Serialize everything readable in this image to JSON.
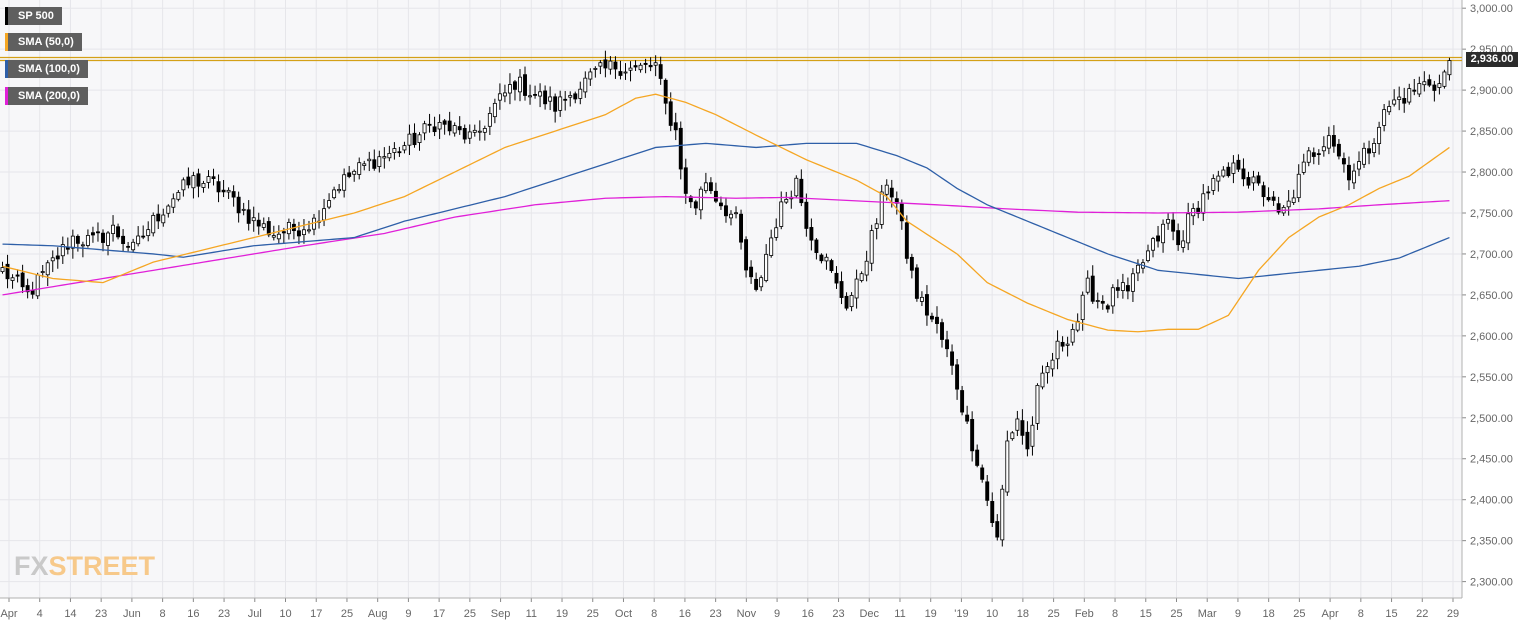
{
  "colors": {
    "background": "#f7f7f9",
    "grid": "#e6e6ea",
    "candle_up_fill": "#ffffff",
    "candle_down_fill": "#000000",
    "candle_outline": "#000000",
    "sma50": "#f5a623",
    "sma100": "#2e5fa8",
    "sma200": "#e020d8",
    "resistance_line": "#d4a017",
    "legend_bg": "#5f5f5f",
    "price_tag_bg": "#2b2b2b"
  },
  "legend": [
    {
      "label": "SP 500",
      "color": "#000000"
    },
    {
      "label": "SMA (50,0)",
      "color": "#f5a623"
    },
    {
      "label": "SMA (100,0)",
      "color": "#2e5fa8"
    },
    {
      "label": "SMA (200,0)",
      "color": "#e020d8"
    }
  ],
  "price_tag": "2,936.00",
  "brand": {
    "part1": "FX",
    "part2": "STREET"
  },
  "chart_data": {
    "type": "candlestick",
    "title": "SP 500",
    "ylim": [
      2280,
      3010
    ],
    "y_ticks": [
      {
        "value": 3000,
        "label": "3,000.00"
      },
      {
        "value": 2950,
        "label": "2,950.00"
      },
      {
        "value": 2900,
        "label": "2,900.00"
      },
      {
        "value": 2850,
        "label": "2,850.00"
      },
      {
        "value": 2800,
        "label": "2,800.00"
      },
      {
        "value": 2750,
        "label": "2,750.00"
      },
      {
        "value": 2700,
        "label": "2,700.00"
      },
      {
        "value": 2650,
        "label": "2,650.00"
      },
      {
        "value": 2600,
        "label": "2,600.00"
      },
      {
        "value": 2550,
        "label": "2,550.00"
      },
      {
        "value": 2500,
        "label": "2,500.00"
      },
      {
        "value": 2450,
        "label": "2,450.00"
      },
      {
        "value": 2400,
        "label": "2,400.00"
      },
      {
        "value": 2350,
        "label": "2,350.00"
      },
      {
        "value": 2300,
        "label": "2,300.00"
      }
    ],
    "x_ticks": [
      "Apr",
      "4",
      "14",
      "23",
      "Jun",
      "8",
      "16",
      "23",
      "Jul",
      "10",
      "17",
      "25",
      "Aug",
      "9",
      "17",
      "25",
      "Sep",
      "11",
      "19",
      "25",
      "Oct",
      "8",
      "16",
      "23",
      "Nov",
      "9",
      "16",
      "23",
      "Dec",
      "11",
      "19",
      "'19",
      "10",
      "18",
      "25",
      "Feb",
      "8",
      "15",
      "25",
      "Mar",
      "9",
      "18",
      "25",
      "Apr",
      "8",
      "15",
      "22",
      "29"
    ],
    "resistance_level": 2938,
    "last_price": 2936,
    "anchors": [
      [
        0,
        2680
      ],
      [
        5,
        2650
      ],
      [
        10,
        2690
      ],
      [
        14,
        2720
      ],
      [
        18,
        2715
      ],
      [
        22,
        2730
      ],
      [
        26,
        2705
      ],
      [
        30,
        2740
      ],
      [
        34,
        2770
      ],
      [
        38,
        2790
      ],
      [
        42,
        2785
      ],
      [
        46,
        2765
      ],
      [
        50,
        2740
      ],
      [
        54,
        2725
      ],
      [
        58,
        2730
      ],
      [
        62,
        2740
      ],
      [
        66,
        2780
      ],
      [
        70,
        2800
      ],
      [
        74,
        2815
      ],
      [
        78,
        2825
      ],
      [
        82,
        2840
      ],
      [
        86,
        2860
      ],
      [
        90,
        2850
      ],
      [
        94,
        2840
      ],
      [
        98,
        2880
      ],
      [
        102,
        2910
      ],
      [
        106,
        2895
      ],
      [
        110,
        2880
      ],
      [
        114,
        2900
      ],
      [
        118,
        2920
      ],
      [
        122,
        2930
      ],
      [
        126,
        2925
      ],
      [
        130,
        2930
      ],
      [
        132,
        2880
      ],
      [
        134,
        2850
      ],
      [
        136,
        2770
      ],
      [
        138,
        2760
      ],
      [
        140,
        2790
      ],
      [
        142,
        2770
      ],
      [
        146,
        2740
      ],
      [
        148,
        2680
      ],
      [
        150,
        2650
      ],
      [
        152,
        2700
      ],
      [
        154,
        2740
      ],
      [
        156,
        2770
      ],
      [
        158,
        2790
      ],
      [
        160,
        2740
      ],
      [
        162,
        2710
      ],
      [
        164,
        2690
      ],
      [
        166,
        2660
      ],
      [
        168,
        2640
      ],
      [
        170,
        2660
      ],
      [
        172,
        2700
      ],
      [
        174,
        2740
      ],
      [
        176,
        2790
      ],
      [
        178,
        2760
      ],
      [
        180,
        2700
      ],
      [
        182,
        2650
      ],
      [
        184,
        2630
      ],
      [
        186,
        2610
      ],
      [
        188,
        2580
      ],
      [
        190,
        2540
      ],
      [
        192,
        2490
      ],
      [
        194,
        2450
      ],
      [
        196,
        2400
      ],
      [
        198,
        2350
      ],
      [
        200,
        2470
      ],
      [
        202,
        2500
      ],
      [
        204,
        2460
      ],
      [
        206,
        2530
      ],
      [
        208,
        2560
      ],
      [
        210,
        2585
      ],
      [
        212,
        2600
      ],
      [
        214,
        2620
      ],
      [
        216,
        2660
      ],
      [
        218,
        2645
      ],
      [
        220,
        2640
      ],
      [
        222,
        2660
      ],
      [
        224,
        2650
      ],
      [
        226,
        2680
      ],
      [
        228,
        2700
      ],
      [
        230,
        2720
      ],
      [
        232,
        2740
      ],
      [
        234,
        2710
      ],
      [
        236,
        2740
      ],
      [
        238,
        2760
      ],
      [
        240,
        2780
      ],
      [
        242,
        2790
      ],
      [
        244,
        2795
      ],
      [
        246,
        2810
      ],
      [
        248,
        2790
      ],
      [
        250,
        2780
      ],
      [
        252,
        2770
      ],
      [
        254,
        2745
      ],
      [
        256,
        2760
      ],
      [
        258,
        2790
      ],
      [
        260,
        2820
      ],
      [
        262,
        2830
      ],
      [
        264,
        2850
      ],
      [
        266,
        2820
      ],
      [
        268,
        2800
      ],
      [
        270,
        2810
      ],
      [
        272,
        2830
      ],
      [
        274,
        2860
      ],
      [
        276,
        2880
      ],
      [
        278,
        2890
      ],
      [
        280,
        2895
      ],
      [
        282,
        2905
      ],
      [
        284,
        2910
      ],
      [
        286,
        2906
      ],
      [
        288,
        2936
      ]
    ],
    "sma50": [
      [
        0,
        2685
      ],
      [
        10,
        2670
      ],
      [
        20,
        2665
      ],
      [
        30,
        2690
      ],
      [
        40,
        2705
      ],
      [
        50,
        2720
      ],
      [
        60,
        2735
      ],
      [
        70,
        2750
      ],
      [
        80,
        2770
      ],
      [
        90,
        2800
      ],
      [
        100,
        2830
      ],
      [
        110,
        2850
      ],
      [
        120,
        2870
      ],
      [
        126,
        2890
      ],
      [
        130,
        2895
      ],
      [
        136,
        2885
      ],
      [
        142,
        2870
      ],
      [
        150,
        2845
      ],
      [
        160,
        2815
      ],
      [
        170,
        2790
      ],
      [
        176,
        2770
      ],
      [
        180,
        2740
      ],
      [
        190,
        2700
      ],
      [
        196,
        2665
      ],
      [
        204,
        2640
      ],
      [
        212,
        2620
      ],
      [
        220,
        2607
      ],
      [
        226,
        2605
      ],
      [
        232,
        2608
      ],
      [
        238,
        2608
      ],
      [
        244,
        2625
      ],
      [
        250,
        2680
      ],
      [
        256,
        2720
      ],
      [
        262,
        2745
      ],
      [
        268,
        2760
      ],
      [
        274,
        2780
      ],
      [
        280,
        2795
      ],
      [
        288,
        2830
      ]
    ],
    "sma100": [
      [
        0,
        2712
      ],
      [
        10,
        2710
      ],
      [
        20,
        2705
      ],
      [
        30,
        2700
      ],
      [
        36,
        2696
      ],
      [
        40,
        2700
      ],
      [
        50,
        2710
      ],
      [
        60,
        2715
      ],
      [
        70,
        2720
      ],
      [
        80,
        2740
      ],
      [
        90,
        2755
      ],
      [
        100,
        2770
      ],
      [
        110,
        2790
      ],
      [
        120,
        2810
      ],
      [
        130,
        2830
      ],
      [
        140,
        2835
      ],
      [
        150,
        2830
      ],
      [
        160,
        2835
      ],
      [
        170,
        2835
      ],
      [
        178,
        2820
      ],
      [
        184,
        2805
      ],
      [
        190,
        2780
      ],
      [
        196,
        2760
      ],
      [
        204,
        2740
      ],
      [
        212,
        2720
      ],
      [
        220,
        2700
      ],
      [
        230,
        2680
      ],
      [
        238,
        2675
      ],
      [
        246,
        2670
      ],
      [
        254,
        2675
      ],
      [
        262,
        2680
      ],
      [
        270,
        2685
      ],
      [
        278,
        2695
      ],
      [
        288,
        2720
      ]
    ],
    "sma200": [
      [
        0,
        2650
      ],
      [
        20,
        2670
      ],
      [
        40,
        2690
      ],
      [
        60,
        2710
      ],
      [
        76,
        2725
      ],
      [
        90,
        2745
      ],
      [
        106,
        2760
      ],
      [
        120,
        2768
      ],
      [
        132,
        2770
      ],
      [
        146,
        2768
      ],
      [
        156,
        2769
      ],
      [
        166,
        2766
      ],
      [
        176,
        2763
      ],
      [
        186,
        2760
      ],
      [
        200,
        2755
      ],
      [
        214,
        2751
      ],
      [
        230,
        2750
      ],
      [
        246,
        2751
      ],
      [
        262,
        2755
      ],
      [
        274,
        2760
      ],
      [
        288,
        2765
      ]
    ]
  }
}
